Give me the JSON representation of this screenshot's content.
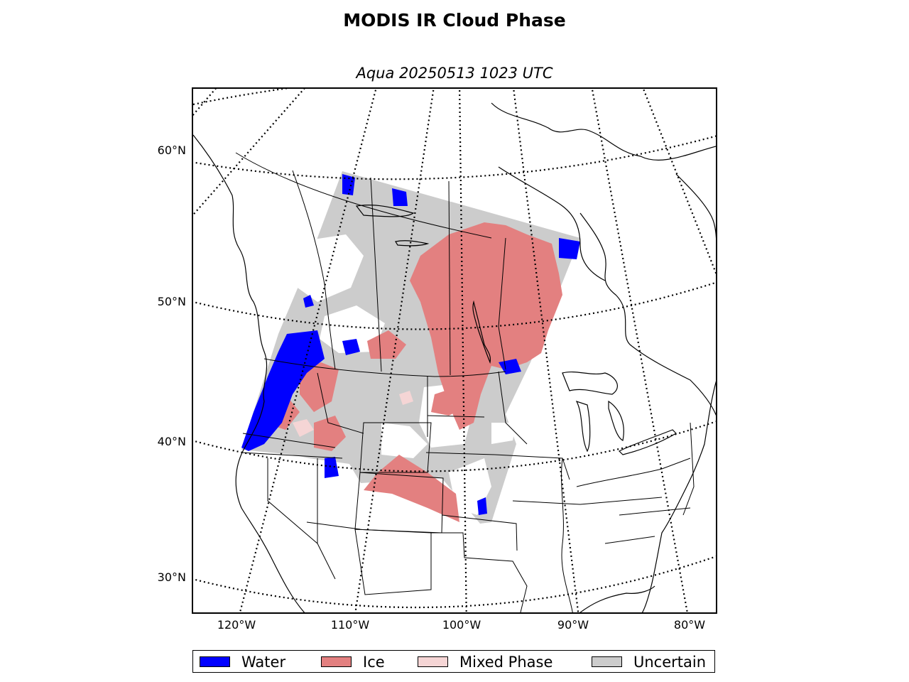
{
  "title": "MODIS IR Cloud Phase",
  "subtitle": "Aqua 20250513 1023 UTC",
  "colors": {
    "water": "#0000ff",
    "ice": "#e38080",
    "mixed": "#f5d5d5",
    "uncertain": "#cccccc",
    "coast": "#000000",
    "grid": "#000000"
  },
  "axes": {
    "lat_labels": [
      "60°N",
      "50°N",
      "40°N",
      "30°N"
    ],
    "lon_labels": [
      "120°W",
      "110°W",
      "100°W",
      "90°W",
      "80°W"
    ]
  },
  "legend": {
    "items": [
      {
        "label": "Water",
        "color": "#0000ff"
      },
      {
        "label": "Ice",
        "color": "#e38080"
      },
      {
        "label": "Mixed Phase",
        "color": "#f5d5d5"
      },
      {
        "label": "Uncertain",
        "color": "#cccccc"
      }
    ]
  },
  "icons": {
    "graticule": "dotted-grid-lines",
    "map": "north-america-lambert-map"
  }
}
